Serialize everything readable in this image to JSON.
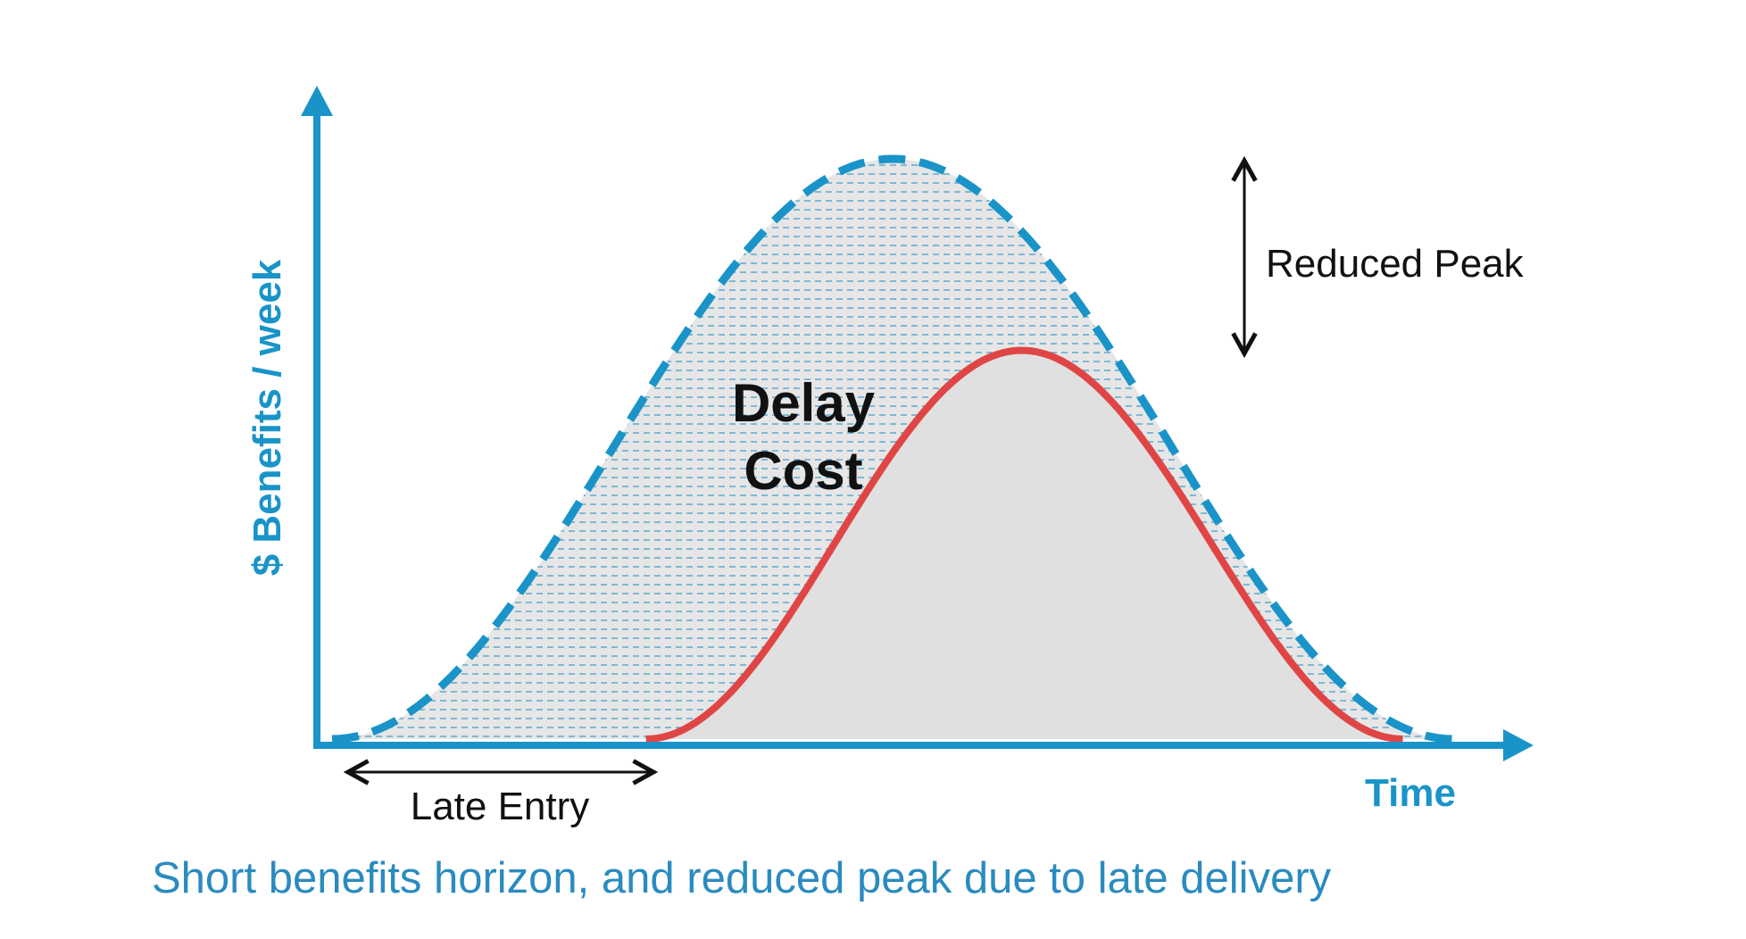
{
  "colors": {
    "axis": "#1a94c8",
    "dashed_curve": "#1a94c8",
    "solid_curve": "#e04545",
    "fill": "#e0e0e0",
    "text": "#111111",
    "caption": "#2a8bbf"
  },
  "axes": {
    "y_label": "$ Benefits / week",
    "x_label": "Time"
  },
  "labels": {
    "delay_line1": "Delay",
    "delay_line2": "Cost",
    "reduced_peak": "Reduced Peak",
    "late_entry": "Late Entry"
  },
  "caption": "Short benefits horizon, and reduced peak due to late delivery",
  "curves": [
    {
      "name": "",
      "style": "dashed",
      "start": 0.0,
      "peak_time": 0.5,
      "end": 1.0,
      "peak_value": 1.0
    },
    {
      "name": "",
      "style": "solid",
      "start": 0.28,
      "peak_time": 0.615,
      "end": 0.955,
      "peak_value": 0.67
    }
  ]
}
